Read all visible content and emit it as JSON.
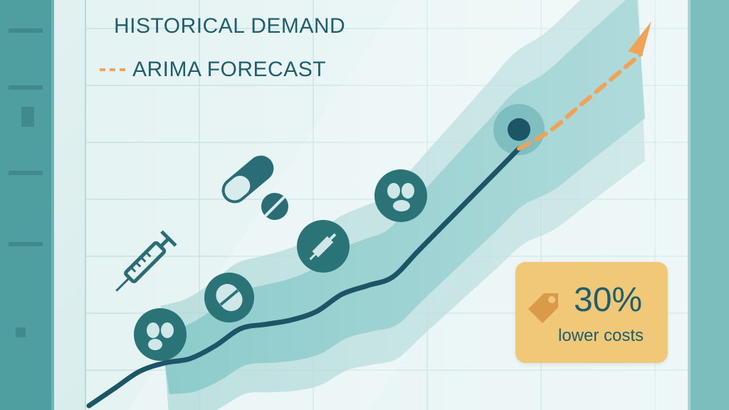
{
  "legend": {
    "historical_label": "HISTORICAL DEMAND",
    "forecast_label": "ARIMA FORECAST"
  },
  "badge": {
    "value": "30%",
    "label": "lower costs",
    "icon": "price-tag-icon"
  },
  "icons": [
    "syringe-icon",
    "capsule-icon",
    "tablet-icon",
    "pill-circle-icon",
    "tablet-circle-icon",
    "syringe-circle-icon",
    "pill-circle-icon"
  ],
  "colors": {
    "historical_line": "#1b5566",
    "forecast_line": "#f0a356",
    "band": "#7fc6c6",
    "badge": "#f1c878",
    "text": "#1f5e6d"
  },
  "chart_data": {
    "type": "line",
    "grid": true,
    "legend_position": "top-left",
    "series": [
      {
        "name": "HISTORICAL DEMAND",
        "values": [
          0,
          2,
          4,
          5,
          5.5,
          7,
          9,
          9.5,
          10,
          11,
          13,
          14,
          15,
          18,
          21,
          24,
          27,
          30
        ]
      },
      {
        "name": "ARIMA FORECAST",
        "values": [
          30,
          32,
          35,
          38,
          41
        ]
      }
    ]
  }
}
